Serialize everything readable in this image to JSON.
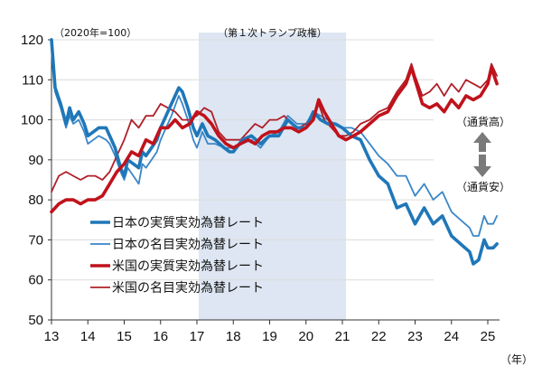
{
  "chart_data": {
    "type": "line",
    "title": "",
    "unit_label": "（2020年=100）",
    "xlabel": "（年）",
    "ylabel": "",
    "xlim": [
      2013,
      2025.3
    ],
    "ylim": [
      50,
      120
    ],
    "yticks": [
      50,
      60,
      70,
      80,
      90,
      100,
      110,
      120
    ],
    "xticks": [
      13,
      14,
      15,
      16,
      17,
      18,
      19,
      20,
      21,
      22,
      23,
      24,
      25
    ],
    "grid": true,
    "shaded_region": {
      "label": "（第１次トランプ政権）",
      "x_start": 2017.05,
      "x_end": 2021.1,
      "color": "#dde6f2"
    },
    "annotations": {
      "up_label": "（通貨高）",
      "down_label": "（通貨安）"
    },
    "legend_placement": "bottom-left",
    "series": [
      {
        "name": "日本の実質実効為替レート",
        "color": "#1f77b8",
        "weight": "thick",
        "x": [
          2013.0,
          2013.1,
          2013.25,
          2013.4,
          2013.5,
          2013.6,
          2013.75,
          2013.9,
          2014.0,
          2014.15,
          2014.3,
          2014.5,
          2014.6,
          2014.75,
          2014.9,
          2015.0,
          2015.1,
          2015.25,
          2015.4,
          2015.5,
          2015.6,
          2015.75,
          2015.9,
          2016.0,
          2016.15,
          2016.3,
          2016.5,
          2016.6,
          2016.75,
          2016.9,
          2017.0,
          2017.15,
          2017.3,
          2017.5,
          2017.75,
          2017.9,
          2018.0,
          2018.25,
          2018.5,
          2018.75,
          2019.0,
          2019.25,
          2019.5,
          2019.75,
          2020.0,
          2020.2,
          2020.4,
          2020.6,
          2020.8,
          2021.0,
          2021.25,
          2021.5,
          2021.75,
          2022.0,
          2022.25,
          2022.5,
          2022.75,
          2023.0,
          2023.25,
          2023.5,
          2023.75,
          2024.0,
          2024.25,
          2024.5,
          2024.6,
          2024.75,
          2024.9,
          2025.0,
          2025.15,
          2025.25
        ],
        "y": [
          120,
          108,
          104,
          99,
          103,
          100,
          102,
          99,
          96,
          97,
          98,
          98,
          96,
          93,
          88,
          86,
          90,
          89,
          88,
          92,
          91,
          93,
          95,
          98,
          101,
          104,
          108,
          107,
          103,
          98,
          96,
          99,
          96,
          95,
          93,
          92,
          92,
          95,
          96,
          94,
          96,
          96,
          100,
          98,
          98,
          102,
          100,
          99,
          99,
          98,
          96,
          95,
          90,
          86,
          84,
          78,
          79,
          74,
          78,
          74,
          76,
          71,
          69,
          67,
          64,
          65,
          70,
          68,
          68,
          69
        ]
      },
      {
        "name": "日本の名目実効為替レート",
        "color": "#3a86c8",
        "weight": "thin",
        "x": [
          2013.0,
          2013.1,
          2013.25,
          2013.4,
          2013.5,
          2013.6,
          2013.75,
          2013.9,
          2014.0,
          2014.15,
          2014.3,
          2014.5,
          2014.6,
          2014.75,
          2014.9,
          2015.0,
          2015.1,
          2015.25,
          2015.4,
          2015.5,
          2015.6,
          2015.75,
          2015.9,
          2016.0,
          2016.15,
          2016.3,
          2016.5,
          2016.6,
          2016.75,
          2016.9,
          2017.0,
          2017.15,
          2017.3,
          2017.5,
          2017.75,
          2017.9,
          2018.0,
          2018.25,
          2018.5,
          2018.75,
          2019.0,
          2019.25,
          2019.5,
          2019.75,
          2020.0,
          2020.2,
          2020.4,
          2020.6,
          2020.8,
          2021.0,
          2021.25,
          2021.5,
          2021.75,
          2022.0,
          2022.25,
          2022.5,
          2022.75,
          2023.0,
          2023.25,
          2023.5,
          2023.75,
          2024.0,
          2024.25,
          2024.5,
          2024.6,
          2024.75,
          2024.9,
          2025.0,
          2025.15,
          2025.25
        ],
        "y": [
          119,
          107,
          103,
          98,
          101,
          99,
          100,
          97,
          94,
          95,
          96,
          95,
          94,
          91,
          87,
          85,
          88,
          86,
          84,
          89,
          88,
          90,
          92,
          95,
          98,
          101,
          106,
          104,
          100,
          95,
          93,
          97,
          94,
          94,
          93,
          93,
          93,
          94,
          95,
          93,
          96,
          97,
          101,
          99,
          99,
          102,
          101,
          100,
          99,
          98,
          98,
          97,
          94,
          91,
          89,
          86,
          86,
          81,
          84,
          80,
          82,
          77,
          75,
          73,
          71,
          71,
          76,
          74,
          74,
          76
        ]
      },
      {
        "name": "米国の実質実効為替レート",
        "color": "#c0121b",
        "weight": "thick",
        "x": [
          2013.0,
          2013.2,
          2013.4,
          2013.6,
          2013.8,
          2014.0,
          2014.2,
          2014.4,
          2014.6,
          2014.8,
          2015.0,
          2015.2,
          2015.4,
          2015.6,
          2015.8,
          2016.0,
          2016.2,
          2016.4,
          2016.6,
          2016.8,
          2017.0,
          2017.2,
          2017.4,
          2017.6,
          2017.8,
          2018.0,
          2018.2,
          2018.4,
          2018.6,
          2018.8,
          2019.0,
          2019.2,
          2019.4,
          2019.6,
          2019.8,
          2020.0,
          2020.2,
          2020.35,
          2020.5,
          2020.7,
          2020.9,
          2021.1,
          2021.3,
          2021.5,
          2021.75,
          2022.0,
          2022.25,
          2022.5,
          2022.75,
          2022.9,
          2023.0,
          2023.2,
          2023.4,
          2023.6,
          2023.8,
          2024.0,
          2024.2,
          2024.4,
          2024.6,
          2024.8,
          2025.0,
          2025.1,
          2025.25
        ],
        "y": [
          77,
          79,
          80,
          80,
          79,
          80,
          80,
          81,
          84,
          87,
          89,
          92,
          91,
          95,
          94,
          98,
          98,
          100,
          98,
          99,
          102,
          101,
          99,
          96,
          94,
          93,
          94,
          95,
          94,
          96,
          97,
          97,
          98,
          98,
          97,
          98,
          100,
          105,
          102,
          99,
          96,
          95,
          96,
          97,
          99,
          101,
          102,
          106,
          109,
          113,
          110,
          104,
          103,
          104,
          102,
          105,
          103,
          106,
          105,
          106,
          109,
          113,
          109
        ]
      },
      {
        "name": "米国の名目実効為替レート",
        "color": "#b01f2a",
        "weight": "thin",
        "x": [
          2013.0,
          2013.2,
          2013.4,
          2013.6,
          2013.8,
          2014.0,
          2014.2,
          2014.4,
          2014.6,
          2014.8,
          2015.0,
          2015.2,
          2015.4,
          2015.6,
          2015.8,
          2016.0,
          2016.2,
          2016.4,
          2016.6,
          2016.8,
          2017.0,
          2017.2,
          2017.4,
          2017.6,
          2017.8,
          2018.0,
          2018.2,
          2018.4,
          2018.6,
          2018.8,
          2019.0,
          2019.2,
          2019.4,
          2019.6,
          2019.8,
          2020.0,
          2020.2,
          2020.35,
          2020.5,
          2020.7,
          2020.9,
          2021.1,
          2021.3,
          2021.5,
          2021.75,
          2022.0,
          2022.25,
          2022.5,
          2022.75,
          2022.9,
          2023.0,
          2023.2,
          2023.4,
          2023.6,
          2023.8,
          2024.0,
          2024.2,
          2024.4,
          2024.6,
          2024.8,
          2025.0,
          2025.1,
          2025.25
        ],
        "y": [
          82,
          86,
          87,
          86,
          85,
          86,
          86,
          85,
          87,
          91,
          95,
          100,
          98,
          101,
          101,
          104,
          103,
          102,
          100,
          100,
          101,
          103,
          102,
          97,
          95,
          95,
          95,
          97,
          99,
          98,
          100,
          100,
          101,
          99,
          98,
          99,
          101,
          104,
          100,
          98,
          96,
          96,
          97,
          99,
          100,
          102,
          103,
          107,
          110,
          114,
          111,
          106,
          107,
          109,
          106,
          109,
          107,
          110,
          109,
          108,
          110,
          114,
          111
        ]
      }
    ]
  }
}
